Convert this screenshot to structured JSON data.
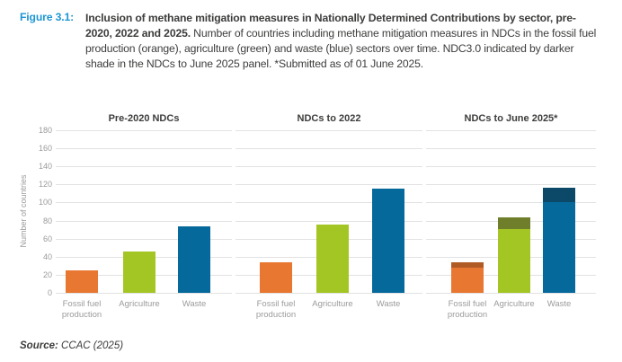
{
  "figure": {
    "label": "Figure 3.1:",
    "caption_bold": "Inclusion of methane mitigation measures in Nationally Determined Contributions by sector, pre-2020, 2022 and 2025.",
    "caption_regular": " Number of countries including methane mitigation measures in NDCs in the fossil fuel production (orange), agriculture (green) and waste (blue) sectors over time. NDC3.0 indicated by darker shade in the NDCs to June 2025 panel. *Submitted as of 01 June 2025."
  },
  "source": {
    "prefix": "Source:",
    "text": " CCAC (2025)"
  },
  "chart_data": {
    "type": "bar",
    "title": "Inclusion of methane mitigation measures in NDCs by sector, pre-2020, 2022 and 2025",
    "ylabel": "Number of countries",
    "xlabel": "",
    "ylim": [
      0,
      180
    ],
    "ytick_step": 20,
    "grid": true,
    "legend": "none",
    "categories": [
      "Fossil fuel production",
      "Agriculture",
      "Waste"
    ],
    "panels": [
      {
        "title": "Pre-2020 NDCs",
        "totals": [
          25,
          46,
          74
        ]
      },
      {
        "title": "NDCs to 2022",
        "totals": [
          34,
          76,
          115
        ]
      },
      {
        "title": "NDCs to June 2025*",
        "totals": [
          34,
          84,
          116
        ],
        "base_portion": [
          28,
          71,
          100
        ],
        "ndc30_portion": [
          6,
          13,
          16
        ]
      }
    ],
    "series_colors": {
      "fossil_fuel_production": {
        "base": "#E87732",
        "ndc30_dark": "#B05B26"
      },
      "agriculture": {
        "base": "#A4C625",
        "ndc30_dark": "#6E7E2B"
      },
      "waste": {
        "base": "#06699C",
        "ndc30_dark": "#0C4868"
      }
    },
    "annotation": "Darker shade in the NDCs to June 2025 panel = NDC3.0"
  },
  "ui_colors": {
    "figure_label_blue": "#1E96D3",
    "text_dark": "#3C3C3B",
    "axis_gray": "#9B9B9B",
    "gridline_gray": "#E2E2E2"
  }
}
